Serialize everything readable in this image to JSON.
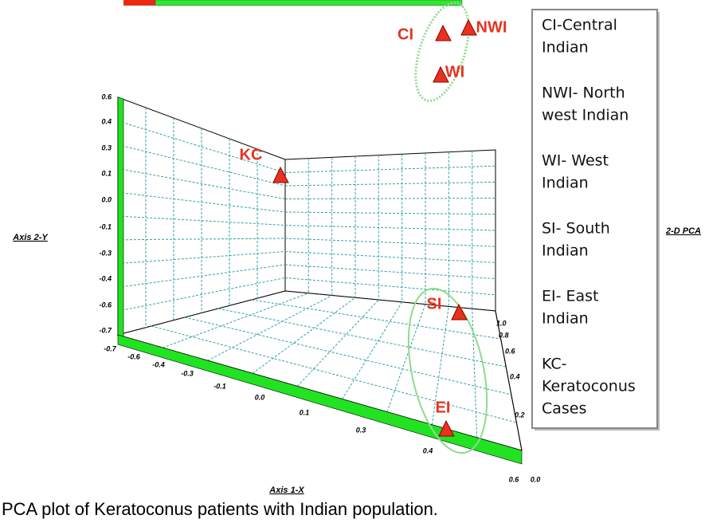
{
  "y_axis": {
    "title": "Axis 2-Y",
    "ticks": [
      "0.6",
      "0.4",
      "0.3",
      "0.1",
      "0.0",
      "-0.1",
      "-0.3",
      "-0.4",
      "-0.6",
      "-0.7"
    ]
  },
  "x_axis": {
    "title": "Axis 1-X",
    "ticks": [
      "-0.7",
      "-0.6",
      "-0.4",
      "-0.3",
      "-0.1",
      "0.0",
      "0.1",
      "0.3",
      "0.4",
      "0.6"
    ]
  },
  "z_axis": {
    "ticks": [
      "0.0",
      "1.0",
      "0.8",
      "0.6",
      "0.4",
      "0.2"
    ]
  },
  "side_title": "2-D PCA",
  "points": [
    "CI",
    "NWI",
    "WI",
    "KC",
    "SI",
    "EI"
  ],
  "legend": [
    [
      "CI-Central",
      "Indian"
    ],
    [
      "NWI- North",
      "west Indian"
    ],
    [
      "WI- West",
      "Indian"
    ],
    [
      "SI- South",
      "Indian"
    ],
    [
      "EI- East",
      "Indian"
    ],
    [
      "KC-",
      "Keratoconus",
      "Cases"
    ]
  ],
  "caption": "PCA plot of Keratoconus patients with Indian population."
}
